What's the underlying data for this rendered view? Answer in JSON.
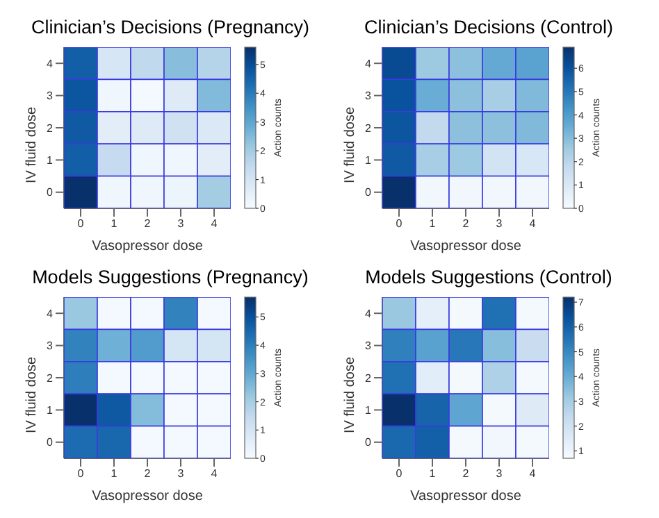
{
  "chart_data": [
    {
      "type": "heatmap",
      "title": "Clinician’s Decisions (Pregnancy)",
      "xlabel": "Vasopressor dose",
      "ylabel": "IV fluid dose",
      "clabel": "Action counts",
      "categories": [
        "0",
        "1",
        "2",
        "3",
        "4"
      ],
      "y_categories": [
        "4",
        "3",
        "2",
        "1",
        "0"
      ],
      "cells": [
        [
          4.6,
          0.9,
          1.5,
          2.4,
          1.7
        ],
        [
          4.8,
          0.2,
          0.1,
          0.7,
          2.5
        ],
        [
          4.7,
          0.6,
          0.7,
          1.1,
          0.8
        ],
        [
          4.6,
          1.4,
          0.2,
          0.2,
          0.6
        ],
        [
          5.6,
          0.2,
          0.2,
          0.3,
          2.0
        ]
      ],
      "clim": [
        0,
        5.6
      ],
      "cticks": [
        0,
        1,
        2,
        3,
        4,
        5
      ]
    },
    {
      "type": "heatmap",
      "title": "Clinician’s Decisions (Control)",
      "xlabel": "Vasopressor dose",
      "ylabel": "IV fluid dose",
      "clabel": "Action counts",
      "categories": [
        "0",
        "1",
        "2",
        "3",
        "4"
      ],
      "y_categories": [
        "4",
        "3",
        "2",
        "1",
        "0"
      ],
      "cells": [
        [
          6.2,
          2.6,
          2.9,
          3.6,
          3.8
        ],
        [
          6.0,
          3.5,
          2.9,
          2.4,
          3.1
        ],
        [
          5.9,
          1.8,
          2.9,
          2.9,
          3.1
        ],
        [
          5.8,
          2.4,
          2.6,
          1.3,
          1.1
        ],
        [
          6.9,
          0.2,
          0.2,
          0.2,
          0.2
        ]
      ],
      "clim": [
        0,
        6.9
      ],
      "cticks": [
        0,
        1,
        2,
        3,
        4,
        5,
        6
      ]
    },
    {
      "type": "heatmap",
      "title": "Models Suggestions (Pregnancy)",
      "xlabel": "Vasopressor dose",
      "ylabel": "IV fluid dose",
      "clabel": "Action counts",
      "categories": [
        "0",
        "1",
        "2",
        "3",
        "4"
      ],
      "y_categories": [
        "4",
        "3",
        "2",
        "1",
        "0"
      ],
      "cells": [
        [
          2.2,
          0.1,
          0.1,
          3.9,
          0.1
        ],
        [
          3.9,
          2.8,
          3.3,
          1.0,
          1.0
        ],
        [
          4.0,
          0.1,
          0.1,
          0.1,
          0.1
        ],
        [
          5.7,
          4.8,
          2.5,
          0.1,
          0.1
        ],
        [
          4.4,
          4.5,
          0.1,
          0.1,
          0.1
        ]
      ],
      "clim": [
        0,
        5.7
      ],
      "cticks": [
        0,
        1,
        2,
        3,
        4,
        5
      ]
    },
    {
      "type": "heatmap",
      "title": "Models Suggestions (Control)",
      "xlabel": "Vasopressor dose",
      "ylabel": "IV fluid dose",
      "clabel": "Action counts",
      "categories": [
        "0",
        "1",
        "2",
        "3",
        "4"
      ],
      "y_categories": [
        "4",
        "3",
        "2",
        "1",
        "0"
      ],
      "cells": [
        [
          3.2,
          1.3,
          0.8,
          5.6,
          0.8
        ],
        [
          5.2,
          4.3,
          5.4,
          3.5,
          2.2
        ],
        [
          5.6,
          1.4,
          0.8,
          2.8,
          0.8
        ],
        [
          7.2,
          5.9,
          4.2,
          0.8,
          1.5
        ],
        [
          5.8,
          6.0,
          0.8,
          0.9,
          0.8
        ]
      ],
      "clim": [
        0.7,
        7.2
      ],
      "cticks": [
        1,
        2,
        3,
        4,
        5,
        6,
        7
      ]
    }
  ]
}
